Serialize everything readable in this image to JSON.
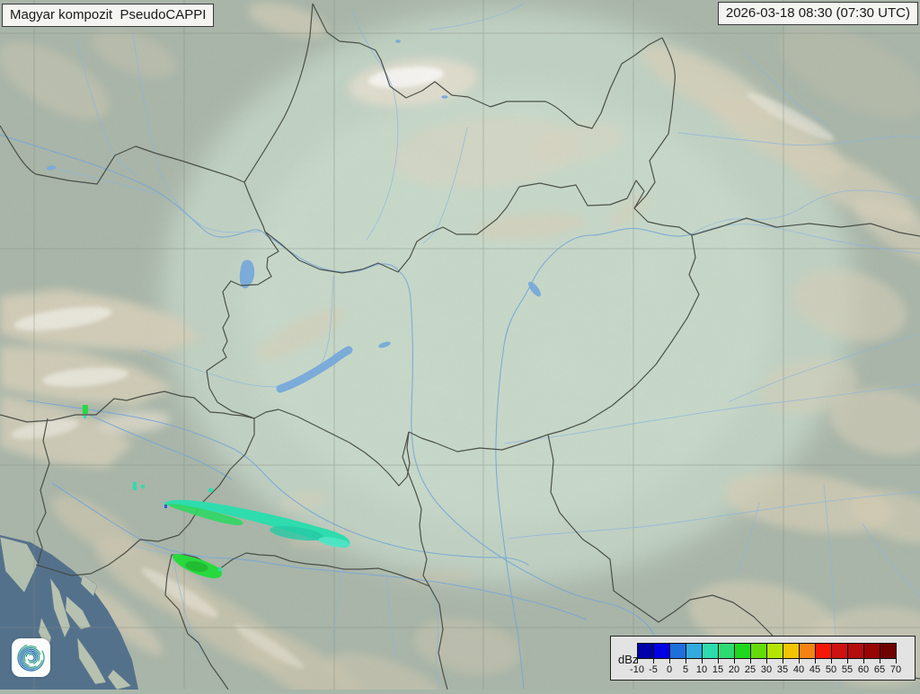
{
  "header": {
    "product_label": "Magyar kompozit  PseudoCAPPI",
    "timestamp_label": "2026-03-18 08:30 (07:30 UTC)"
  },
  "legend": {
    "unit": "dBz",
    "tick_values": [
      "-10",
      "-5",
      "0",
      "5",
      "10",
      "15",
      "20",
      "25",
      "30",
      "35",
      "40",
      "45",
      "50",
      "55",
      "60",
      "65",
      "70"
    ],
    "cell_colors": [
      "#0000A8",
      "#0000E4",
      "#1E6EDC",
      "#33AADD",
      "#2EDBAD",
      "#2EDB72",
      "#1FD71F",
      "#66DB0C",
      "#B5E400",
      "#F2C400",
      "#F58313",
      "#F51807",
      "#CE1111",
      "#B30D0D",
      "#970505",
      "#700101"
    ]
  },
  "map": {
    "echo_colors": {
      "weak_teal": "#2EDCAE",
      "moderate_green": "#28D93E",
      "speck_blue": "#2B58D8"
    },
    "coverage_tint": "#D2E7D8",
    "sea_color": "#54718C",
    "river_color": "#79A6D4",
    "border_color": "#454A43"
  },
  "logo": {
    "name": "met-service-spiral-logo",
    "gradient": [
      "#44C07F",
      "#2A6DB5"
    ]
  }
}
